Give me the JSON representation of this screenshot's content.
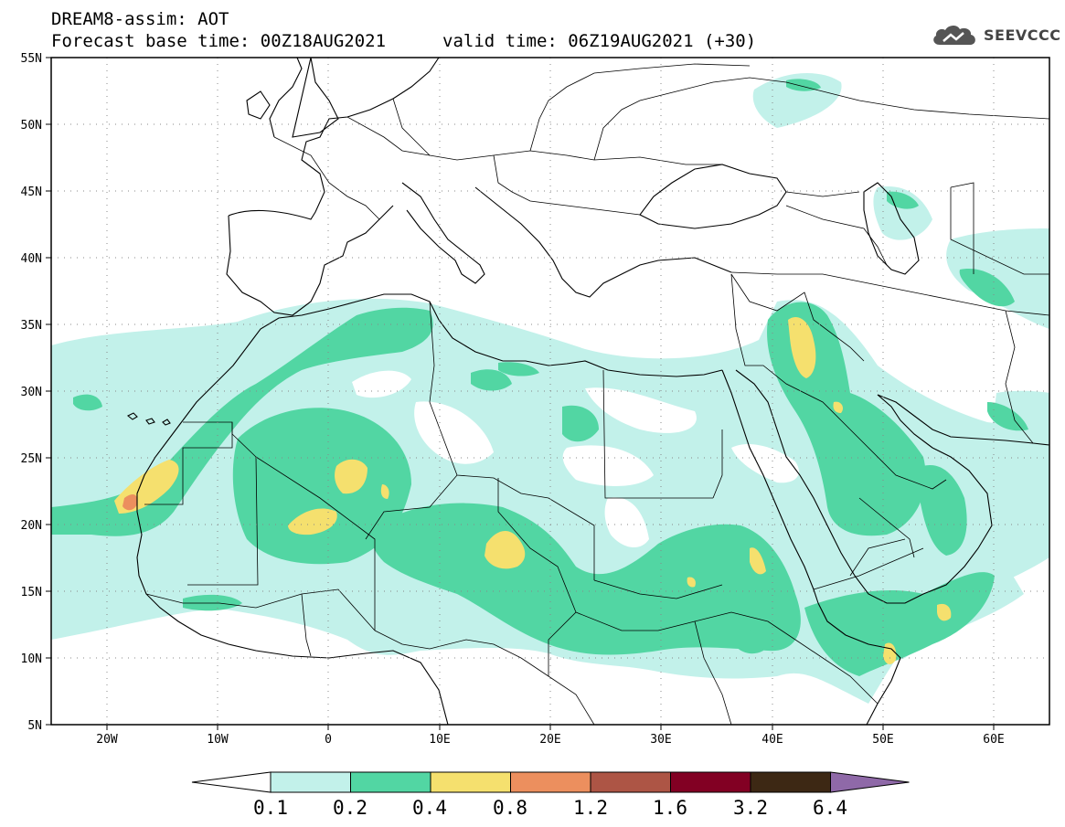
{
  "header": {
    "line1": "DREAM8-assim: AOT",
    "line2": "Forecast base time: 00Z18AUG2021",
    "valid": "valid time: 06Z19AUG2021 (+30)",
    "logo_text": "SEEVCCC",
    "logo_icon": "cloud-icon"
  },
  "map": {
    "region": {
      "lon": [
        -25,
        65
      ],
      "lat": [
        5,
        55
      ]
    },
    "lat_labels": [
      "55N",
      "50N",
      "45N",
      "40N",
      "35N",
      "30N",
      "25N",
      "20N",
      "15N",
      "10N",
      "5N"
    ],
    "lon_labels": [
      "20W",
      "10W",
      "0",
      "10E",
      "20E",
      "30E",
      "40E",
      "50E",
      "60E"
    ],
    "grid": "dotted"
  },
  "colorbar": {
    "labels": [
      "0.1",
      "0.2",
      "0.4",
      "0.8",
      "1.2",
      "1.6",
      "3.2",
      "6.4"
    ],
    "colors": [
      "#ffffff",
      "#c2f1ea",
      "#52d6a3",
      "#f5e06e",
      "#ec8f5e",
      "#ad5545",
      "#820023",
      "#3d2814",
      "#8f69a8"
    ]
  }
}
